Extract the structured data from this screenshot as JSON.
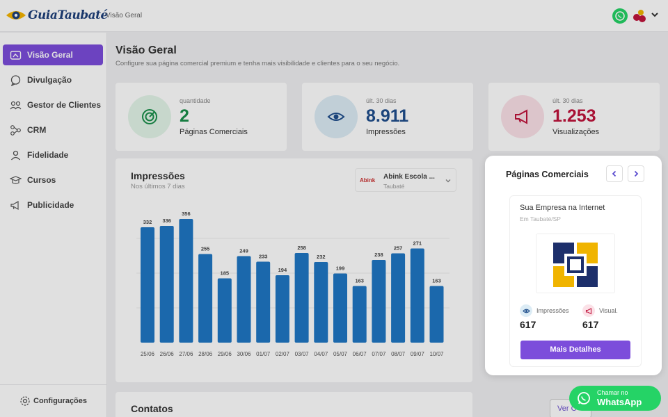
{
  "topbar": {
    "logo_text": "GuiaTaubaté",
    "breadcrumb": "Visão Geral"
  },
  "sidebar": {
    "items": [
      {
        "label": "Visão Geral",
        "icon": "dashboard-icon",
        "active": true
      },
      {
        "label": "Divulgação",
        "icon": "chat-icon",
        "active": false
      },
      {
        "label": "Gestor de Clientes",
        "icon": "users-icon",
        "active": false
      },
      {
        "label": "CRM",
        "icon": "flow-icon",
        "active": false
      },
      {
        "label": "Fidelidade",
        "icon": "user-icon",
        "active": false
      },
      {
        "label": "Cursos",
        "icon": "graduation-cap-icon",
        "active": false
      },
      {
        "label": "Publicidade",
        "icon": "megaphone-icon",
        "active": false
      }
    ],
    "settings_label": "Configurações"
  },
  "header": {
    "title": "Visão Geral",
    "subtitle": "Configure sua página comercial premium e tenha mais visibilidade e clientes para o seu negócio."
  },
  "stats": [
    {
      "caption": "quantidade",
      "value": "2",
      "label": "Páginas Comerciais",
      "color": "#1a8f4a",
      "bg": "#e3f5e9"
    },
    {
      "caption": "últ. 30 dias",
      "value": "8.911",
      "label": "Impressões",
      "color": "#1f4e8c",
      "bg": "#dcecf5"
    },
    {
      "caption": "últ. 30 dias",
      "value": "1.253",
      "label": "Visualizações",
      "color": "#c0143c",
      "bg": "#fbe1e7"
    }
  ],
  "impressions": {
    "title": "Impressões",
    "subtitle": "Nos últimos 7 dias",
    "business_name": "Abink Escola ...",
    "business_city": "Taubaté",
    "business_logo_text": "Abink"
  },
  "chart_data": {
    "type": "bar",
    "categories": [
      "25/06",
      "26/06",
      "27/06",
      "28/06",
      "29/06",
      "30/06",
      "01/07",
      "02/07",
      "03/07",
      "04/07",
      "05/07",
      "06/07",
      "07/07",
      "08/07",
      "09/07",
      "10/07"
    ],
    "values": [
      332,
      336,
      356,
      255,
      185,
      249,
      233,
      194,
      258,
      232,
      199,
      163,
      238,
      257,
      271,
      163
    ],
    "value_labels": [
      "332",
      "336",
      "356",
      "255",
      "185",
      "249",
      "233",
      "194",
      "258",
      "232",
      "199",
      "163",
      "238",
      "257",
      "271",
      "163"
    ],
    "bar_color": "#1f77c4",
    "grid": true
  },
  "contacts": {
    "title": "Contatos",
    "button_label": "Ver C"
  },
  "commercial_pages": {
    "title": "Páginas Comerciais",
    "business_name": "Sua Empresa na Internet",
    "business_city": "Em Taubaté/SP",
    "impressions_label": "Impressões",
    "impressions_value": "617",
    "visual_label": "Visual.",
    "visual_value": "617",
    "details_button": "Mais Detalhes"
  },
  "whatsapp": {
    "small": "Chamar no",
    "big": "WhatsApp"
  }
}
